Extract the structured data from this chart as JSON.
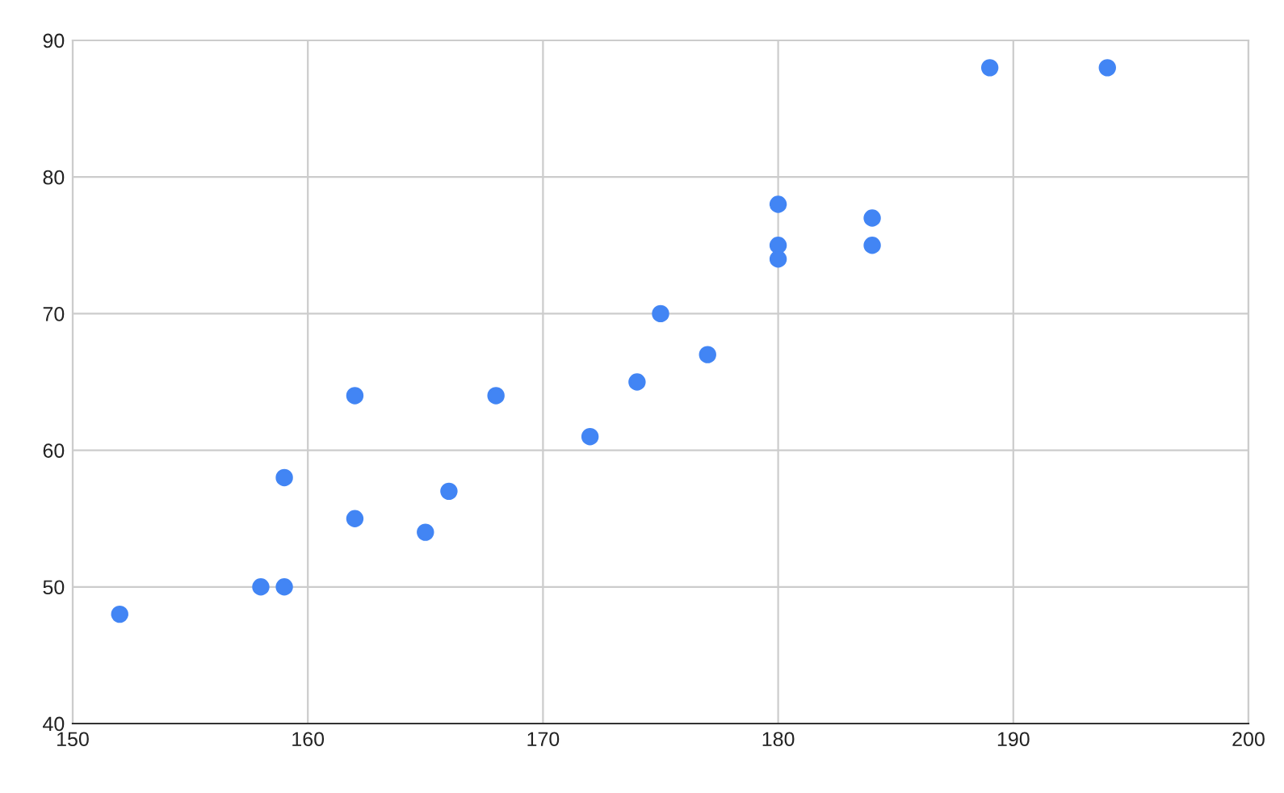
{
  "chart_data": {
    "type": "scatter",
    "x": [
      152,
      158,
      159,
      159,
      162,
      162,
      165,
      166,
      168,
      172,
      174,
      175,
      177,
      180,
      180,
      180,
      184,
      184,
      189,
      194
    ],
    "series": [
      {
        "color": "#4285f4",
        "values": [
          48,
          50,
          50,
          58,
          55,
          64,
          54,
          57,
          64,
          61,
          65,
          70,
          67,
          74,
          75,
          78,
          75,
          77,
          88,
          88
        ]
      }
    ],
    "xlim": [
      150,
      200
    ],
    "xticks": [
      150,
      160,
      170,
      180,
      190,
      200
    ],
    "ylim": [
      40,
      90
    ],
    "yticks": [
      40,
      50,
      60,
      70,
      80,
      90
    ],
    "grid": true,
    "marker": "circle"
  }
}
